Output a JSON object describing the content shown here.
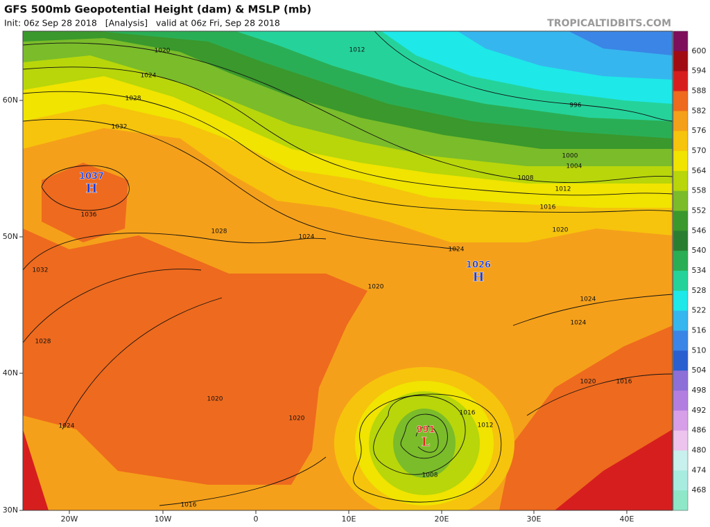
{
  "header": {
    "title": "GFS 500mb Geopotential Height (dam) & MSLP (mb)",
    "subtitle": "Init: 06z Sep 28 2018   [Analysis]   valid at 06z Fri, Sep 28 2018",
    "source": "TROPICALTIDBITS.COM"
  },
  "axes": {
    "lat": [
      "60N",
      "50N",
      "40N",
      "30N"
    ],
    "lon": [
      "20W",
      "10W",
      "0",
      "10E",
      "20E",
      "30E",
      "40E"
    ]
  },
  "colorbar": {
    "labels": [
      600,
      594,
      588,
      582,
      576,
      570,
      564,
      558,
      552,
      546,
      540,
      534,
      528,
      522,
      516,
      510,
      504,
      498,
      492,
      486,
      480,
      474,
      468
    ],
    "colors": [
      "#7d0f5c",
      "#a10c14",
      "#d71e1e",
      "#ee6a1e",
      "#f5a01a",
      "#f6c40c",
      "#f0e400",
      "#b8d60a",
      "#7abc2a",
      "#3a982c",
      "#2a7e32",
      "#2aae55",
      "#25d39a",
      "#1ee8e8",
      "#36b6ee",
      "#3a85e6",
      "#2a5fcf",
      "#8d6fd8",
      "#b27fe0",
      "#d79fe8",
      "#ecc4ee",
      "#c8f0ec",
      "#a8ece0",
      "#8ee8c8"
    ]
  },
  "centers": [
    {
      "value": "1037",
      "letter": "H"
    },
    {
      "value": "1026",
      "letter": "H"
    },
    {
      "value": "991",
      "letter": "L"
    }
  ],
  "isobar_labels": [
    "1020",
    "1024",
    "1028",
    "1032",
    "1036",
    "1032",
    "1028",
    "1024",
    "1028",
    "1024",
    "1020",
    "1024",
    "1020",
    "1016",
    "1012",
    "1008",
    "1004",
    "1000",
    "996",
    "1012",
    "1024",
    "1024",
    "1020",
    "1016",
    "1020",
    "1020",
    "1016",
    "1016",
    "1012",
    "1008"
  ]
}
